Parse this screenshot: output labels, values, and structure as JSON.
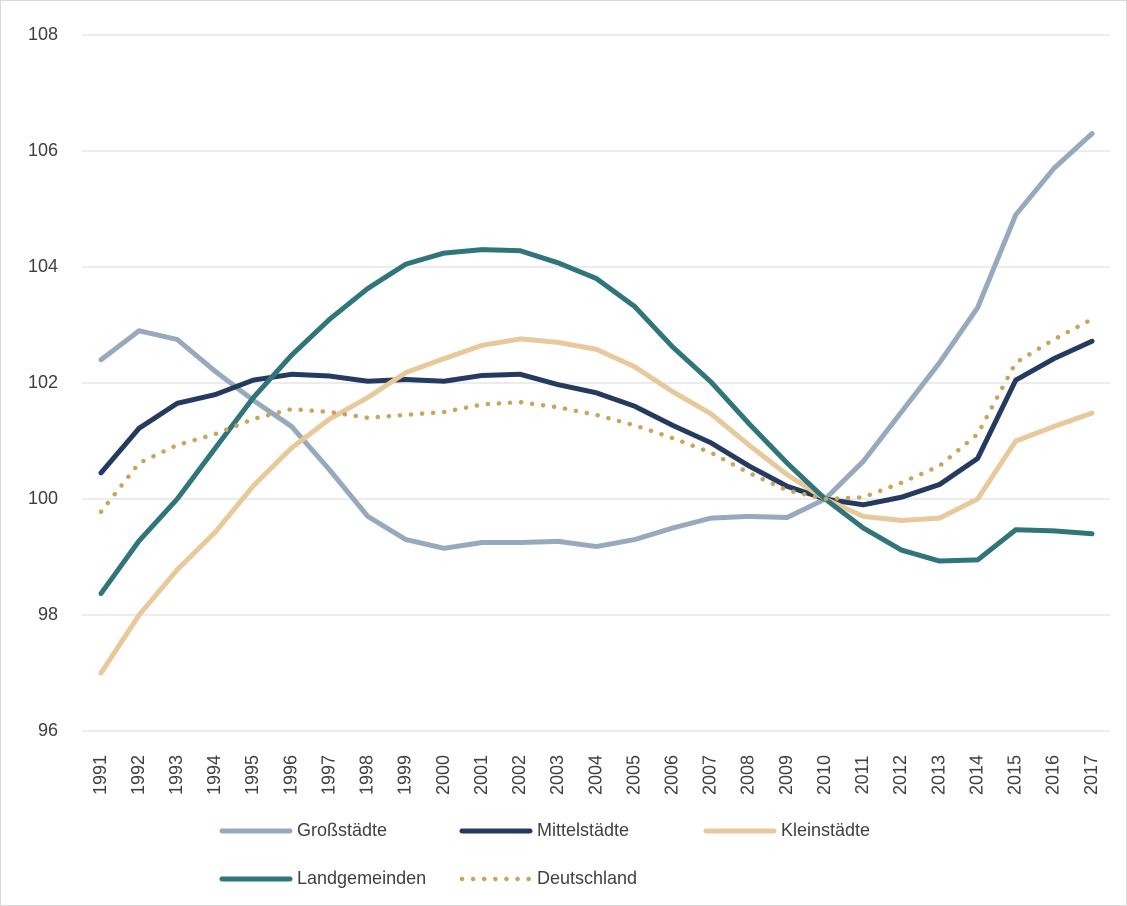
{
  "chart_data": {
    "type": "line",
    "x": [
      "1991",
      "1992",
      "1993",
      "1994",
      "1995",
      "1996",
      "1997",
      "1998",
      "1999",
      "2000",
      "2001",
      "2002",
      "2003",
      "2004",
      "2005",
      "2006",
      "2007",
      "2008",
      "2009",
      "2010",
      "2011",
      "2012",
      "2013",
      "2014",
      "2015",
      "2016",
      "2017"
    ],
    "series": [
      {
        "name": "Großstädte",
        "color": "#97a9bd",
        "values": [
          102.4,
          102.9,
          102.75,
          102.2,
          101.7,
          101.25,
          100.5,
          99.7,
          99.3,
          99.15,
          99.25,
          99.25,
          99.27,
          99.18,
          99.3,
          99.5,
          99.67,
          99.7,
          99.68,
          100,
          100.65,
          101.5,
          102.35,
          103.3,
          104.9,
          105.7,
          106.3
        ]
      },
      {
        "name": "Mittelstädte",
        "color": "#243a5e",
        "values": [
          100.45,
          101.22,
          101.65,
          101.8,
          102.05,
          102.15,
          102.12,
          102.03,
          102.06,
          102.03,
          102.13,
          102.15,
          101.97,
          101.83,
          101.6,
          101.27,
          100.97,
          100.57,
          100.22,
          100,
          99.9,
          100.03,
          100.25,
          100.7,
          102.05,
          102.42,
          102.72
        ]
      },
      {
        "name": "Kleinstädte",
        "color": "#e8c99b",
        "values": [
          97.0,
          98.0,
          98.78,
          99.43,
          100.23,
          100.88,
          101.38,
          101.75,
          102.18,
          102.42,
          102.65,
          102.76,
          102.7,
          102.58,
          102.28,
          101.85,
          101.47,
          100.93,
          100.42,
          100,
          99.7,
          99.63,
          99.67,
          100.0,
          101.0,
          101.25,
          101.48
        ]
      },
      {
        "name": "Landgemeinden",
        "color": "#2f7579",
        "values": [
          98.37,
          99.28,
          100.0,
          100.88,
          101.75,
          102.48,
          103.1,
          103.63,
          104.05,
          104.24,
          104.3,
          104.28,
          104.07,
          103.8,
          103.32,
          102.62,
          102.02,
          101.3,
          100.62,
          100.0,
          99.5,
          99.12,
          98.93,
          98.95,
          99.47,
          99.45,
          99.4
        ]
      },
      {
        "name": "Deutschland",
        "color": "#c9a45c",
        "dash": "dotted",
        "values": [
          99.78,
          100.62,
          100.93,
          101.12,
          101.38,
          101.55,
          101.5,
          101.4,
          101.45,
          101.5,
          101.63,
          101.67,
          101.58,
          101.45,
          101.27,
          101.05,
          100.8,
          100.45,
          100.15,
          100,
          100.03,
          100.28,
          100.57,
          101.12,
          102.35,
          102.75,
          103.1
        ]
      }
    ],
    "ylim": [
      96,
      108
    ],
    "yticks": [
      96,
      98,
      100,
      102,
      104,
      106,
      108
    ],
    "grid": true,
    "legend": "bottom"
  }
}
